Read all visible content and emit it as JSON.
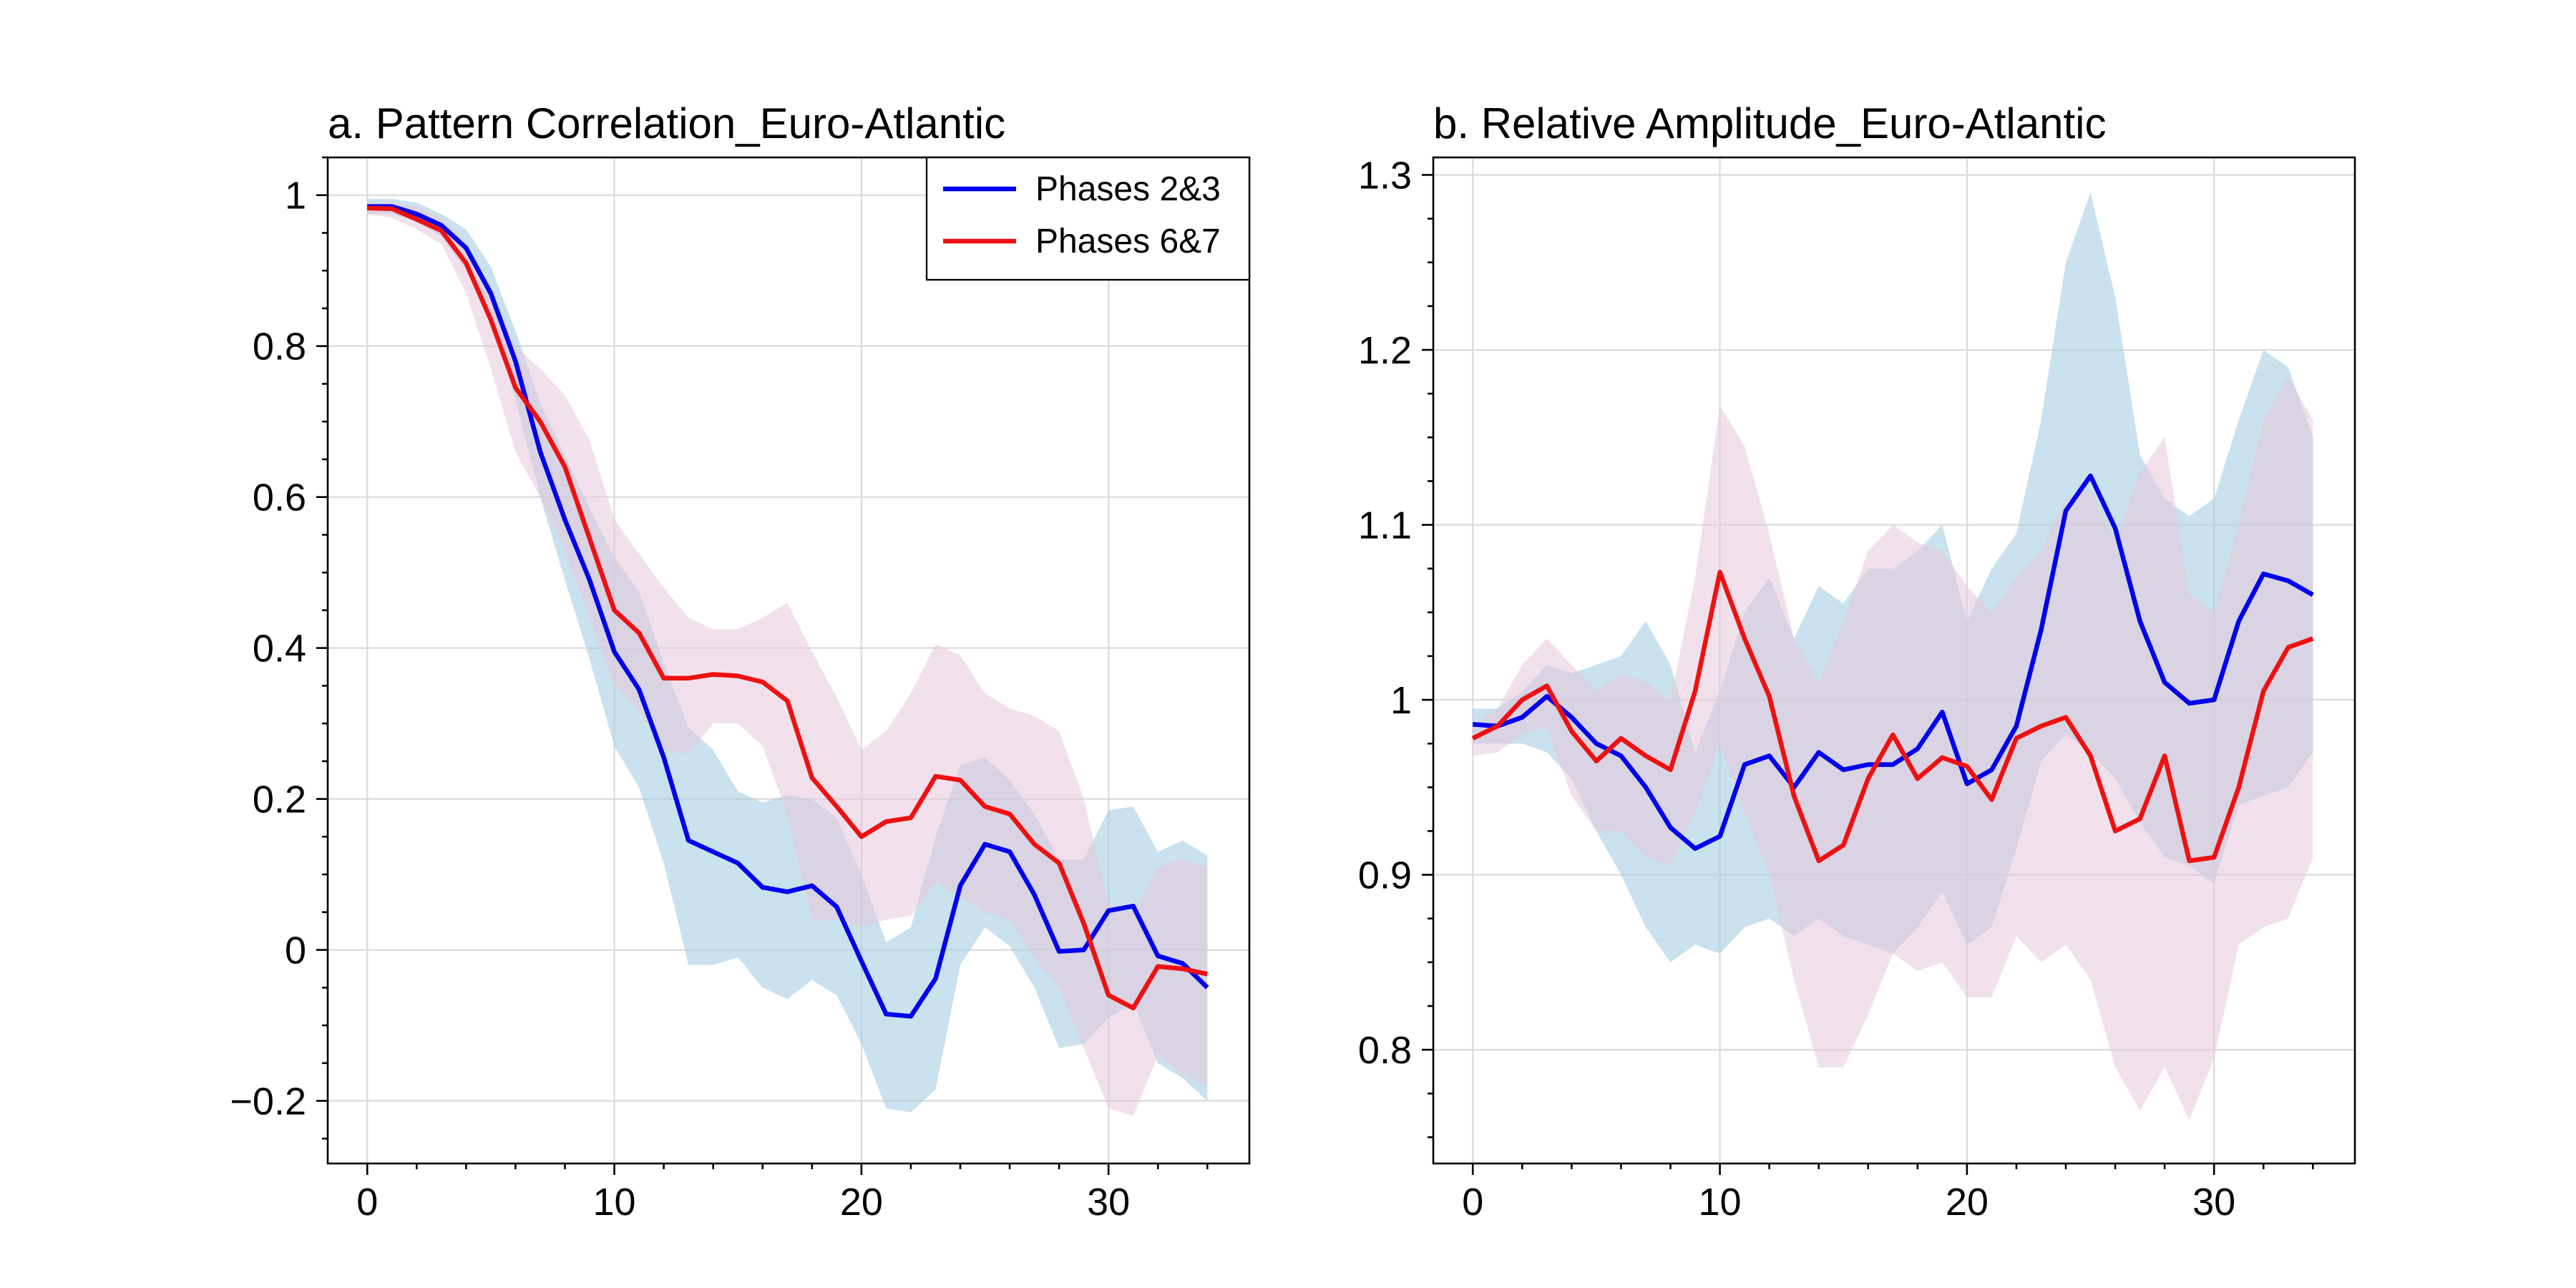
{
  "colors": {
    "p23_line": "#0000ee",
    "p67_line": "#ee1111",
    "p23_band": "#a7cde2",
    "p67_band": "#e8c8dc"
  },
  "legend": {
    "placement": "top-right",
    "entries": [
      "Phases 2&3",
      "Phases 6&7"
    ]
  },
  "chart_data": [
    {
      "type": "line",
      "title": "a. Pattern Correlation_Euro-Atlantic",
      "xlabel": "",
      "ylabel": "",
      "xlim": [
        -1.6,
        35.7
      ],
      "ylim": [
        -0.283,
        1.05
      ],
      "xticks": [
        0,
        10,
        20,
        30
      ],
      "xtick_labels": [
        "0",
        "10",
        "20",
        "30"
      ],
      "yticks": [
        -0.2,
        0,
        0.2,
        0.4,
        0.6,
        0.8,
        1
      ],
      "ytick_labels": [
        "−0.2",
        "0",
        "0.2",
        "0.4",
        "0.6",
        "0.8",
        "1"
      ],
      "grid": true,
      "legend": true,
      "x": [
        0,
        1,
        2,
        3,
        4,
        5,
        6,
        7,
        8,
        9,
        10,
        11,
        12,
        13,
        14,
        15,
        16,
        17,
        18,
        19,
        20,
        21,
        22,
        23,
        24,
        25,
        26,
        27,
        28,
        29,
        30,
        31,
        32,
        33,
        34
      ],
      "series": [
        {
          "name": "Phases 2&3",
          "values": [
            0.985,
            0.985,
            0.975,
            0.96,
            0.93,
            0.87,
            0.78,
            0.66,
            0.57,
            0.49,
            0.395,
            0.345,
            0.255,
            0.145,
            0.13,
            0.115,
            0.083,
            0.077,
            0.085,
            0.057,
            -0.015,
            -0.085,
            -0.088,
            -0.038,
            0.085,
            0.14,
            0.13,
            0.073,
            -0.002,
            0.0,
            0.052,
            0.058,
            -0.008,
            -0.018,
            -0.05
          ],
          "upper": [
            0.995,
            0.995,
            0.99,
            0.975,
            0.955,
            0.905,
            0.82,
            0.725,
            0.655,
            0.585,
            0.52,
            0.475,
            0.38,
            0.295,
            0.265,
            0.21,
            0.195,
            0.205,
            0.2,
            0.175,
            0.1,
            0.01,
            0.03,
            0.15,
            0.245,
            0.255,
            0.225,
            0.18,
            0.12,
            0.12,
            0.185,
            0.19,
            0.13,
            0.145,
            0.125
          ],
          "lower": [
            0.975,
            0.975,
            0.965,
            0.945,
            0.9,
            0.835,
            0.73,
            0.6,
            0.49,
            0.385,
            0.27,
            0.215,
            0.115,
            -0.02,
            -0.02,
            -0.01,
            -0.05,
            -0.065,
            -0.04,
            -0.06,
            -0.125,
            -0.21,
            -0.215,
            -0.185,
            -0.02,
            0.03,
            0.005,
            -0.05,
            -0.13,
            -0.125,
            -0.09,
            -0.07,
            -0.15,
            -0.17,
            -0.2
          ]
        },
        {
          "name": "Phases 6&7",
          "values": [
            0.983,
            0.982,
            0.968,
            0.953,
            0.91,
            0.835,
            0.745,
            0.7,
            0.64,
            0.545,
            0.45,
            0.42,
            0.36,
            0.36,
            0.365,
            0.363,
            0.355,
            0.33,
            0.228,
            0.19,
            0.15,
            0.17,
            0.175,
            0.23,
            0.225,
            0.19,
            0.18,
            0.14,
            0.115,
            0.035,
            -0.06,
            -0.077,
            -0.022,
            -0.025,
            -0.032
          ],
          "upper": [
            0.99,
            0.99,
            0.985,
            0.97,
            0.935,
            0.87,
            0.8,
            0.77,
            0.735,
            0.675,
            0.57,
            0.525,
            0.48,
            0.44,
            0.425,
            0.425,
            0.44,
            0.46,
            0.395,
            0.335,
            0.265,
            0.29,
            0.34,
            0.405,
            0.39,
            0.34,
            0.32,
            0.31,
            0.29,
            0.2,
            0.06,
            0.05,
            0.11,
            0.12,
            0.11
          ],
          "lower": [
            0.975,
            0.97,
            0.955,
            0.935,
            0.87,
            0.77,
            0.66,
            0.6,
            0.53,
            0.44,
            0.35,
            0.315,
            0.265,
            0.26,
            0.3,
            0.3,
            0.27,
            0.18,
            0.04,
            0.04,
            0.03,
            0.04,
            0.045,
            0.09,
            0.07,
            0.05,
            0.04,
            -0.01,
            -0.05,
            -0.13,
            -0.21,
            -0.22,
            -0.14,
            -0.165,
            -0.18
          ]
        }
      ]
    },
    {
      "type": "line",
      "title": "b. Relative Amplitude_Euro-Atlantic",
      "xlabel": "",
      "ylabel": "",
      "xlim": [
        -1.6,
        35.7
      ],
      "ylim": [
        0.735,
        1.31
      ],
      "xticks": [
        0,
        10,
        20,
        30
      ],
      "xtick_labels": [
        "0",
        "10",
        "20",
        "30"
      ],
      "yticks": [
        0.8,
        0.9,
        1,
        1.1,
        1.2,
        1.3
      ],
      "ytick_labels": [
        "0.8",
        "0.9",
        "1",
        "1.1",
        "1.2",
        "1.3"
      ],
      "grid": true,
      "legend": false,
      "x": [
        0,
        1,
        2,
        3,
        4,
        5,
        6,
        7,
        8,
        9,
        10,
        11,
        12,
        13,
        14,
        15,
        16,
        17,
        18,
        19,
        20,
        21,
        22,
        23,
        24,
        25,
        26,
        27,
        28,
        29,
        30,
        31,
        32,
        33,
        34
      ],
      "series": [
        {
          "name": "Phases 2&3",
          "values": [
            0.986,
            0.985,
            0.99,
            1.002,
            0.99,
            0.975,
            0.968,
            0.95,
            0.927,
            0.915,
            0.922,
            0.963,
            0.968,
            0.95,
            0.97,
            0.96,
            0.963,
            0.963,
            0.972,
            0.993,
            0.952,
            0.96,
            0.985,
            1.04,
            1.108,
            1.128,
            1.098,
            1.045,
            1.01,
            0.998,
            1.0,
            1.045,
            1.072,
            1.068,
            1.06
          ],
          "upper": [
            0.995,
            0.995,
            1.005,
            1.02,
            1.015,
            1.02,
            1.025,
            1.045,
            1.02,
            0.97,
            1.005,
            1.05,
            1.07,
            1.035,
            1.065,
            1.055,
            1.075,
            1.075,
            1.085,
            1.1,
            1.045,
            1.075,
            1.095,
            1.16,
            1.25,
            1.29,
            1.23,
            1.14,
            1.115,
            1.105,
            1.115,
            1.16,
            1.2,
            1.19,
            1.15
          ],
          "lower": [
            0.975,
            0.975,
            0.975,
            0.97,
            0.955,
            0.925,
            0.9,
            0.87,
            0.85,
            0.86,
            0.855,
            0.87,
            0.875,
            0.865,
            0.875,
            0.865,
            0.86,
            0.855,
            0.87,
            0.89,
            0.86,
            0.87,
            0.915,
            0.965,
            0.98,
            0.97,
            0.955,
            0.93,
            0.91,
            0.905,
            0.895,
            0.94,
            0.945,
            0.95,
            0.97
          ]
        },
        {
          "name": "Phases 6&7",
          "values": [
            0.978,
            0.985,
            1.0,
            1.008,
            0.982,
            0.965,
            0.978,
            0.968,
            0.96,
            1.005,
            1.073,
            1.035,
            1.002,
            0.945,
            0.908,
            0.917,
            0.955,
            0.98,
            0.955,
            0.967,
            0.962,
            0.943,
            0.978,
            0.985,
            0.99,
            0.968,
            0.925,
            0.932,
            0.968,
            0.908,
            0.91,
            0.95,
            1.005,
            1.03,
            1.035
          ],
          "upper": [
            0.985,
            0.995,
            1.02,
            1.035,
            1.02,
            1.005,
            1.015,
            1.01,
            1.0,
            1.07,
            1.168,
            1.145,
            1.095,
            1.035,
            1.01,
            1.045,
            1.085,
            1.1,
            1.09,
            1.085,
            1.065,
            1.05,
            1.07,
            1.085,
            1.115,
            1.12,
            1.09,
            1.13,
            1.15,
            1.06,
            1.05,
            1.1,
            1.16,
            1.185,
            1.16
          ],
          "lower": [
            0.968,
            0.97,
            0.98,
            0.985,
            0.945,
            0.925,
            0.925,
            0.91,
            0.905,
            0.935,
            0.975,
            0.935,
            0.9,
            0.84,
            0.79,
            0.79,
            0.82,
            0.855,
            0.845,
            0.85,
            0.83,
            0.83,
            0.865,
            0.85,
            0.86,
            0.84,
            0.79,
            0.765,
            0.79,
            0.76,
            0.795,
            0.86,
            0.87,
            0.875,
            0.91
          ]
        }
      ]
    }
  ]
}
